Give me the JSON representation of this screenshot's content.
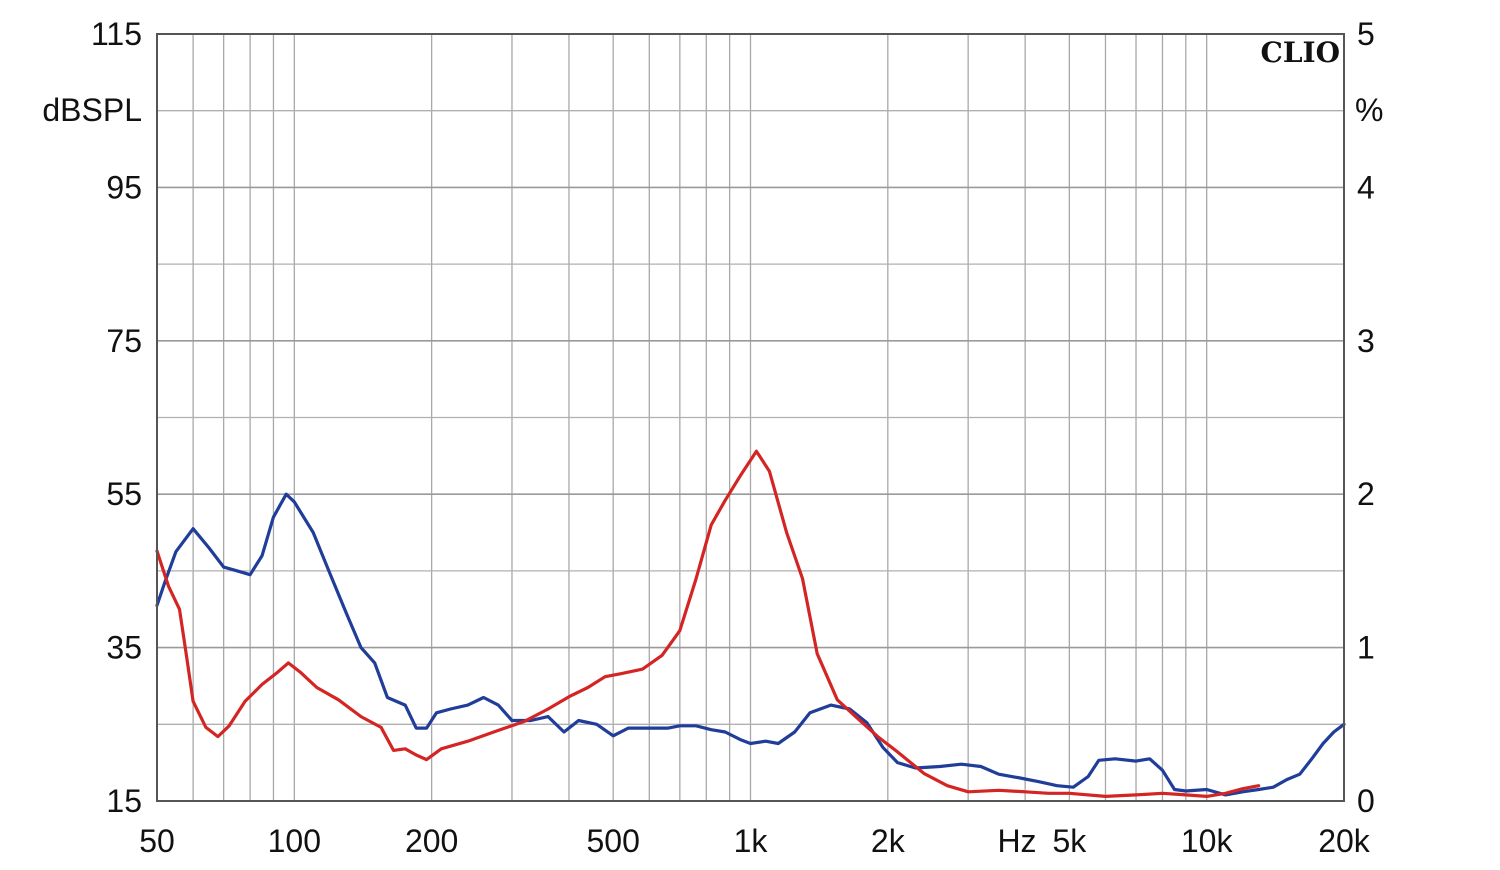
{
  "chart_data": {
    "type": "line",
    "brand": "CLIO",
    "x_unit": "Hz",
    "x_scale": "log",
    "xlim": [
      50,
      20000
    ],
    "x_ticks": [
      {
        "value": 50,
        "label": "50"
      },
      {
        "value": 100,
        "label": "100"
      },
      {
        "value": 200,
        "label": "200"
      },
      {
        "value": 500,
        "label": "500"
      },
      {
        "value": 1000,
        "label": "1k"
      },
      {
        "value": 2000,
        "label": "2k"
      },
      {
        "value": 5000,
        "label": "5k"
      },
      {
        "value": 10000,
        "label": "10k"
      },
      {
        "value": 20000,
        "label": "20k"
      }
    ],
    "y_left": {
      "unit": "dBSPL",
      "range": [
        15,
        115
      ],
      "ticks": [
        {
          "value": 115,
          "label": "115"
        },
        {
          "value": 95,
          "label": "95"
        },
        {
          "value": 75,
          "label": "75"
        },
        {
          "value": 55,
          "label": "55"
        },
        {
          "value": 35,
          "label": "35"
        },
        {
          "value": 15,
          "label": "15"
        }
      ]
    },
    "y_right": {
      "unit": "%",
      "range": [
        0,
        5
      ],
      "ticks": [
        {
          "value": 5,
          "label": "5"
        },
        {
          "value": 4,
          "label": "4"
        },
        {
          "value": 3,
          "label": "3"
        },
        {
          "value": 2,
          "label": "2"
        },
        {
          "value": 1,
          "label": "1"
        },
        {
          "value": 0,
          "label": "0"
        }
      ]
    },
    "grid": true,
    "series": [
      {
        "color": "#1f3d99",
        "axis": "left",
        "points": [
          [
            50,
            40.5
          ],
          [
            52,
            43.5
          ],
          [
            55,
            47.5
          ],
          [
            60,
            50.5
          ],
          [
            65,
            48
          ],
          [
            70,
            45.5
          ],
          [
            75,
            45
          ],
          [
            80,
            44.5
          ],
          [
            85,
            47
          ],
          [
            90,
            52
          ],
          [
            96,
            55
          ],
          [
            100,
            54
          ],
          [
            110,
            50
          ],
          [
            120,
            44.5
          ],
          [
            130,
            39.5
          ],
          [
            140,
            35
          ],
          [
            150,
            33
          ],
          [
            160,
            28.5
          ],
          [
            175,
            27.5
          ],
          [
            185,
            24.5
          ],
          [
            195,
            24.5
          ],
          [
            205,
            26.5
          ],
          [
            220,
            27
          ],
          [
            240,
            27.5
          ],
          [
            260,
            28.5
          ],
          [
            280,
            27.5
          ],
          [
            300,
            25.5
          ],
          [
            330,
            25.5
          ],
          [
            360,
            26
          ],
          [
            390,
            24
          ],
          [
            420,
            25.5
          ],
          [
            460,
            25
          ],
          [
            500,
            23.5
          ],
          [
            540,
            24.5
          ],
          [
            600,
            24.5
          ],
          [
            660,
            24.5
          ],
          [
            700,
            24.8
          ],
          [
            760,
            24.8
          ],
          [
            820,
            24.3
          ],
          [
            880,
            24
          ],
          [
            950,
            23
          ],
          [
            1000,
            22.5
          ],
          [
            1080,
            22.8
          ],
          [
            1150,
            22.5
          ],
          [
            1250,
            24
          ],
          [
            1350,
            26.5
          ],
          [
            1500,
            27.5
          ],
          [
            1650,
            27
          ],
          [
            1800,
            25.2
          ],
          [
            1950,
            22
          ],
          [
            2100,
            20
          ],
          [
            2300,
            19.3
          ],
          [
            2600,
            19.5
          ],
          [
            2900,
            19.8
          ],
          [
            3200,
            19.5
          ],
          [
            3500,
            18.5
          ],
          [
            3900,
            18
          ],
          [
            4300,
            17.5
          ],
          [
            4700,
            17
          ],
          [
            5100,
            16.8
          ],
          [
            5500,
            18.2
          ],
          [
            5800,
            20.3
          ],
          [
            6300,
            20.5
          ],
          [
            7000,
            20.2
          ],
          [
            7500,
            20.5
          ],
          [
            8000,
            19
          ],
          [
            8500,
            16.5
          ],
          [
            9000,
            16.3
          ],
          [
            10000,
            16.5
          ],
          [
            11000,
            15.8
          ],
          [
            12000,
            16.2
          ],
          [
            13000,
            16.5
          ],
          [
            14000,
            16.8
          ],
          [
            15000,
            17.8
          ],
          [
            16000,
            18.5
          ],
          [
            17000,
            20.5
          ],
          [
            18000,
            22.5
          ],
          [
            19000,
            24
          ],
          [
            20000,
            25
          ]
        ]
      },
      {
        "color": "#d42525",
        "axis": "right",
        "points": [
          [
            50,
            1.63
          ],
          [
            53,
            1.4
          ],
          [
            56,
            1.25
          ],
          [
            58,
            0.95
          ],
          [
            60,
            0.65
          ],
          [
            64,
            0.48
          ],
          [
            68,
            0.42
          ],
          [
            72,
            0.49
          ],
          [
            78,
            0.65
          ],
          [
            85,
            0.76
          ],
          [
            92,
            0.84
          ],
          [
            97,
            0.9
          ],
          [
            103,
            0.84
          ],
          [
            112,
            0.74
          ],
          [
            125,
            0.66
          ],
          [
            140,
            0.55
          ],
          [
            155,
            0.48
          ],
          [
            165,
            0.33
          ],
          [
            175,
            0.34
          ],
          [
            185,
            0.3
          ],
          [
            195,
            0.27
          ],
          [
            210,
            0.34
          ],
          [
            240,
            0.39
          ],
          [
            280,
            0.46
          ],
          [
            320,
            0.52
          ],
          [
            360,
            0.6
          ],
          [
            400,
            0.68
          ],
          [
            440,
            0.74
          ],
          [
            480,
            0.81
          ],
          [
            520,
            0.83
          ],
          [
            580,
            0.86
          ],
          [
            640,
            0.95
          ],
          [
            700,
            1.11
          ],
          [
            760,
            1.45
          ],
          [
            820,
            1.8
          ],
          [
            880,
            1.96
          ],
          [
            950,
            2.12
          ],
          [
            1030,
            2.28
          ],
          [
            1100,
            2.15
          ],
          [
            1200,
            1.75
          ],
          [
            1300,
            1.45
          ],
          [
            1400,
            0.96
          ],
          [
            1550,
            0.66
          ],
          [
            1700,
            0.55
          ],
          [
            1900,
            0.42
          ],
          [
            2100,
            0.32
          ],
          [
            2400,
            0.18
          ],
          [
            2700,
            0.1
          ],
          [
            3000,
            0.06
          ],
          [
            3500,
            0.07
          ],
          [
            4000,
            0.06
          ],
          [
            4500,
            0.05
          ],
          [
            5000,
            0.05
          ],
          [
            6000,
            0.03
          ],
          [
            7000,
            0.04
          ],
          [
            8000,
            0.05
          ],
          [
            9000,
            0.04
          ],
          [
            10000,
            0.03
          ],
          [
            11000,
            0.05
          ],
          [
            12000,
            0.08
          ],
          [
            13000,
            0.1
          ]
        ]
      }
    ]
  }
}
